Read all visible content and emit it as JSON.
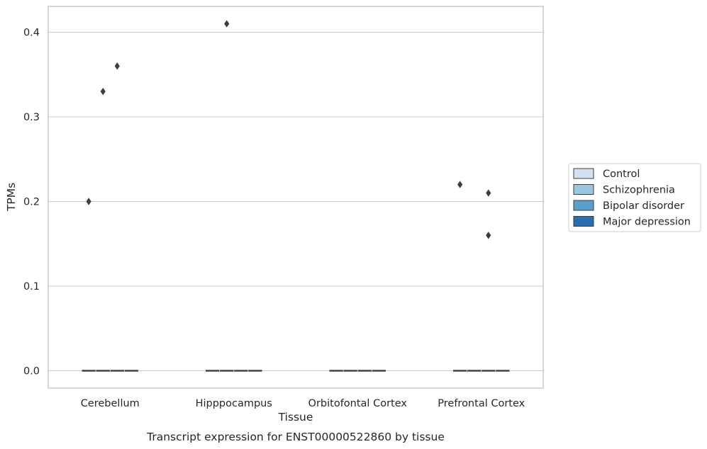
{
  "chart_data": {
    "type": "box",
    "caption": "Transcript expression for ENST00000522860 by tissue",
    "xlabel": "Tissue",
    "ylabel": "TPMs",
    "categories": [
      "Cerebellum",
      "Hipppocampus",
      "Orbitofontal Cortex",
      "Prefrontal Cortex"
    ],
    "ylim": [
      -0.02,
      0.43
    ],
    "yticks": [
      0.0,
      0.1,
      0.2,
      0.3,
      0.4
    ],
    "ytick_labels": [
      "0.0",
      "0.1",
      "0.2",
      "0.3",
      "0.4"
    ],
    "grid": true,
    "legend_position": "right",
    "series": [
      {
        "name": "Control",
        "color": "#d0e2f2",
        "boxes": [
          {
            "category": "Cerebellum",
            "median": 0.0,
            "q1": 0.0,
            "q3": 0.0,
            "whisker_low": 0.0,
            "whisker_high": 0.0,
            "outliers": [
              0.2
            ]
          },
          {
            "category": "Hipppocampus",
            "median": 0.0,
            "q1": 0.0,
            "q3": 0.0,
            "whisker_low": 0.0,
            "whisker_high": 0.0,
            "outliers": []
          },
          {
            "category": "Orbitofontal Cortex",
            "median": 0.0,
            "q1": 0.0,
            "q3": 0.0,
            "whisker_low": 0.0,
            "whisker_high": 0.0,
            "outliers": []
          },
          {
            "category": "Prefrontal Cortex",
            "median": 0.0,
            "q1": 0.0,
            "q3": 0.0,
            "whisker_low": 0.0,
            "whisker_high": 0.0,
            "outliers": [
              0.22
            ]
          }
        ]
      },
      {
        "name": "Schizophrenia",
        "color": "#9ac7e0",
        "boxes": [
          {
            "category": "Cerebellum",
            "median": 0.0,
            "q1": 0.0,
            "q3": 0.0,
            "whisker_low": 0.0,
            "whisker_high": 0.0,
            "outliers": [
              0.33
            ]
          },
          {
            "category": "Hipppocampus",
            "median": 0.0,
            "q1": 0.0,
            "q3": 0.0,
            "whisker_low": 0.0,
            "whisker_high": 0.0,
            "outliers": [
              0.41
            ]
          },
          {
            "category": "Orbitofontal Cortex",
            "median": 0.0,
            "q1": 0.0,
            "q3": 0.0,
            "whisker_low": 0.0,
            "whisker_high": 0.0,
            "outliers": []
          },
          {
            "category": "Prefrontal Cortex",
            "median": 0.0,
            "q1": 0.0,
            "q3": 0.0,
            "whisker_low": 0.0,
            "whisker_high": 0.0,
            "outliers": []
          }
        ]
      },
      {
        "name": "Bipolar disorder",
        "color": "#5a9fcc",
        "boxes": [
          {
            "category": "Cerebellum",
            "median": 0.0,
            "q1": 0.0,
            "q3": 0.0,
            "whisker_low": 0.0,
            "whisker_high": 0.0,
            "outliers": [
              0.36
            ]
          },
          {
            "category": "Hipppocampus",
            "median": 0.0,
            "q1": 0.0,
            "q3": 0.0,
            "whisker_low": 0.0,
            "whisker_high": 0.0,
            "outliers": []
          },
          {
            "category": "Orbitofontal Cortex",
            "median": 0.0,
            "q1": 0.0,
            "q3": 0.0,
            "whisker_low": 0.0,
            "whisker_high": 0.0,
            "outliers": []
          },
          {
            "category": "Prefrontal Cortex",
            "median": 0.0,
            "q1": 0.0,
            "q3": 0.0,
            "whisker_low": 0.0,
            "whisker_high": 0.0,
            "outliers": [
              0.21,
              0.16
            ]
          }
        ]
      },
      {
        "name": "Major depression",
        "color": "#2a6ead",
        "boxes": [
          {
            "category": "Cerebellum",
            "median": 0.0,
            "q1": 0.0,
            "q3": 0.0,
            "whisker_low": 0.0,
            "whisker_high": 0.0,
            "outliers": []
          },
          {
            "category": "Hipppocampus",
            "median": 0.0,
            "q1": 0.0,
            "q3": 0.0,
            "whisker_low": 0.0,
            "whisker_high": 0.0,
            "outliers": []
          },
          {
            "category": "Orbitofontal Cortex",
            "median": 0.0,
            "q1": 0.0,
            "q3": 0.0,
            "whisker_low": 0.0,
            "whisker_high": 0.0,
            "outliers": []
          },
          {
            "category": "Prefrontal Cortex",
            "median": 0.0,
            "q1": 0.0,
            "q3": 0.0,
            "whisker_low": 0.0,
            "whisker_high": 0.0,
            "outliers": []
          }
        ]
      }
    ],
    "colors": {
      "grid": "#cccccc",
      "spine": "#cccccc",
      "box_edge": "#3d3d3d",
      "outlier": "#3d3d3d"
    }
  }
}
